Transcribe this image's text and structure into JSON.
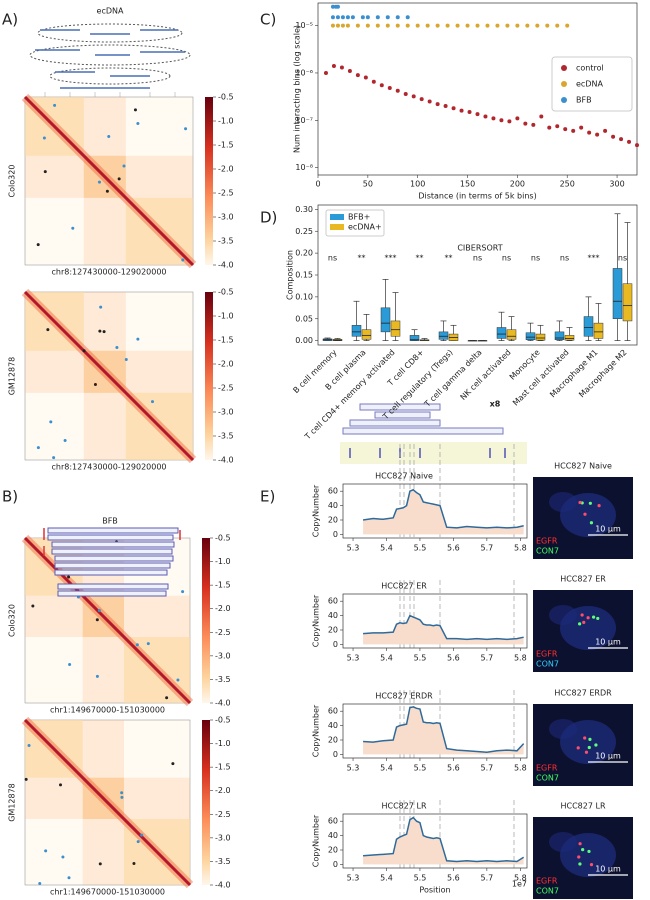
{
  "panel_labels": [
    "A)",
    "B)",
    "C)",
    "D)",
    "E)"
  ],
  "heatmap_panels": [
    {
      "title": "ecDNA",
      "maps": [
        {
          "sample": "Colo320",
          "region": "chr8:127430000-129020000"
        },
        {
          "sample": "GM12878",
          "region": "chr8:127430000-129020000"
        }
      ]
    },
    {
      "title": "BFB",
      "maps": [
        {
          "sample": "Colo320",
          "region": "chr1:149670000-151030000"
        },
        {
          "sample": "GM12878",
          "region": "chr1:149670000-151030000"
        }
      ]
    }
  ],
  "colorbar": {
    "clim": [
      -4,
      -0.5
    ],
    "ticks": [
      -0.5,
      {
        "value": -1,
        "label": "-1.0"
      },
      -1.5,
      {
        "value": -2,
        "label": "-2.0"
      },
      -2.5,
      {
        "value": -3,
        "label": "-3.0"
      },
      -3.5,
      {
        "value": -4,
        "label": "-4.0"
      }
    ]
  },
  "chart_data": [
    {
      "type": "scatter",
      "xlabel": "Distance (in terms of 5k bins)",
      "ylabel": "Num interacting bins (log scale)",
      "log_y": true,
      "legend": "center right",
      "xlim": [
        0,
        320
      ],
      "xticks": [
        0,
        50,
        100,
        150,
        200,
        250,
        300
      ],
      "ylim": [
        7e-09,
        3e-05
      ],
      "yticks": [
        {
          "value": 1e-08,
          "label": "10⁻⁸"
        },
        {
          "value": 1e-07,
          "label": "10⁻⁷"
        },
        {
          "value": 1e-06,
          "label": "10⁻⁶"
        },
        {
          "value": 1e-05,
          "label": "10⁻⁵"
        }
      ],
      "series": [
        {
          "name": "control",
          "color": "#b2262e",
          "x": [
            8,
            16,
            24,
            32,
            40,
            48,
            56,
            64,
            72,
            80,
            88,
            96,
            104,
            112,
            120,
            128,
            136,
            144,
            152,
            160,
            168,
            176,
            184,
            192,
            200,
            208,
            216,
            224,
            232,
            240,
            248,
            256,
            264,
            272,
            280,
            288,
            296,
            304,
            312,
            320
          ],
          "values": [
            1e-06,
            1.4e-06,
            1.3e-06,
            1.1e-06,
            9e-07,
            8e-07,
            6.5e-07,
            5.5e-07,
            4.8e-07,
            4.2e-07,
            3.6e-07,
            3.2e-07,
            2.8e-07,
            2.5e-07,
            2.2e-07,
            2e-07,
            1.8e-07,
            1.6e-07,
            1.5e-07,
            1.35e-07,
            1.2e-07,
            1.1e-07,
            1e-07,
            9.5e-08,
            1.1e-07,
            8.5e-08,
            8e-08,
            1.2e-07,
            7e-08,
            7.5e-08,
            6.5e-08,
            6e-08,
            7e-08,
            5.5e-08,
            5e-08,
            6e-08,
            4.5e-08,
            4e-08,
            3.5e-08,
            3e-08
          ]
        },
        {
          "name": "ecDNA",
          "color": "#d9a62e",
          "x": [
            15,
            20,
            25,
            30,
            40,
            50,
            60,
            70,
            80,
            90,
            100,
            110,
            120,
            130,
            140,
            150,
            160,
            170,
            180,
            190,
            200,
            210,
            220,
            230,
            240,
            250
          ],
          "values": [
            1e-05,
            1e-05,
            1e-05,
            1e-05,
            1e-05,
            1e-05,
            1e-05,
            1e-05,
            1e-05,
            1e-05,
            1e-05,
            1e-05,
            1e-05,
            1e-05,
            1e-05,
            1e-05,
            1e-05,
            1e-05,
            1e-05,
            1e-05,
            1e-05,
            1e-05,
            1e-05,
            1e-05,
            1e-05,
            1e-05
          ]
        },
        {
          "name": "BFB",
          "color": "#3a8fd0",
          "x": [
            15,
            18,
            20,
            15,
            20,
            25,
            30,
            35,
            45,
            50,
            60,
            70,
            80,
            90
          ],
          "values": [
            2.5e-05,
            2.5e-05,
            2.5e-05,
            1.5e-05,
            1.5e-05,
            1.5e-05,
            1.5e-05,
            1.5e-05,
            1.5e-05,
            1.5e-05,
            1.5e-05,
            1.5e-05,
            1.5e-05,
            1.5e-05
          ]
        }
      ]
    },
    {
      "type": "box",
      "title": "CIBERSORT",
      "ylabel": "Composition",
      "legend": "upper left",
      "categories": [
        "B cell memory",
        "B cell plasma",
        "T cell CD4+ memory activated",
        "T cell CD8+",
        "T cell regulatory (Tregs)",
        "T cell gamma delta",
        "NK cell activated",
        "Monocyte",
        "Mast cell activated",
        "Macrophage M1",
        "Macrophage M2"
      ],
      "significance": [
        "ns",
        "**",
        "***",
        "**",
        "**",
        "ns",
        "ns",
        "ns",
        "ns",
        "***",
        "ns"
      ],
      "ylim": [
        -0.01,
        0.31
      ],
      "yticks": [
        {
          "value": 0,
          "label": "0.00"
        },
        {
          "value": 0.05,
          "label": "0.05"
        },
        {
          "value": 0.1,
          "label": "0.10"
        },
        {
          "value": 0.15,
          "label": "0.15"
        },
        {
          "value": 0.2,
          "label": "0.20"
        },
        {
          "value": 0.25,
          "label": "0.25"
        },
        {
          "value": 0.3,
          "label": "0.30"
        }
      ],
      "series": [
        {
          "name": "BFB+",
          "color": "#2b9bd8",
          "whislo": [
            0,
            0,
            0,
            0,
            0,
            0,
            0,
            0,
            0,
            0,
            0
          ],
          "q1": [
            0,
            0.01,
            0.02,
            0,
            0.003,
            0,
            0.005,
            0.002,
            0.002,
            0.01,
            0.05
          ],
          "median": [
            0.002,
            0.02,
            0.04,
            0.002,
            0.01,
            0,
            0.015,
            0.008,
            0.006,
            0.03,
            0.09
          ],
          "q3": [
            0.004,
            0.035,
            0.075,
            0.012,
            0.02,
            0,
            0.03,
            0.018,
            0.02,
            0.055,
            0.165
          ],
          "whishi": [
            0.006,
            0.09,
            0.14,
            0.025,
            0.045,
            0,
            0.065,
            0.04,
            0.045,
            0.1,
            0.29
          ]
        },
        {
          "name": "ecDNA+",
          "color": "#e8b923",
          "whislo": [
            0,
            0,
            0,
            0,
            0,
            0,
            0,
            0,
            0,
            0,
            0
          ],
          "q1": [
            0,
            0.003,
            0.01,
            0,
            0,
            0,
            0.003,
            0.001,
            0.001,
            0.005,
            0.045
          ],
          "median": [
            0.001,
            0.012,
            0.025,
            0,
            0.007,
            0,
            0.01,
            0.006,
            0.005,
            0.02,
            0.08
          ],
          "q3": [
            0.003,
            0.025,
            0.045,
            0.002,
            0.015,
            0,
            0.025,
            0.015,
            0.012,
            0.04,
            0.13
          ],
          "whishi": [
            0.005,
            0.06,
            0.11,
            0.005,
            0.035,
            0,
            0.055,
            0.035,
            0.03,
            0.085,
            0.27
          ]
        }
      ]
    },
    {
      "type": "line",
      "title": "HCC827 Naive",
      "ylabel": "CopyNumber",
      "xlim": [
        5.27,
        5.82
      ],
      "xticks": [
        5.3,
        5.4,
        5.5,
        5.6,
        5.7,
        5.8
      ],
      "ylim": [
        -5,
        70
      ],
      "yticks": [
        0,
        20,
        40,
        60
      ],
      "series": [
        {
          "color": "#2f6a9a",
          "x": [
            5.33,
            5.36,
            5.39,
            5.42,
            5.43,
            5.44,
            5.45,
            5.46,
            5.47,
            5.48,
            5.49,
            5.5,
            5.51,
            5.52,
            5.53,
            5.54,
            5.55,
            5.56,
            5.58,
            5.61,
            5.64,
            5.67,
            5.7,
            5.73,
            5.76,
            5.79,
            5.81
          ],
          "values": [
            20,
            22,
            21,
            23,
            35,
            36,
            37,
            40,
            60,
            62,
            58,
            55,
            45,
            44,
            43,
            42,
            41,
            40,
            10,
            9,
            11,
            10,
            9,
            10,
            9,
            10,
            12
          ]
        }
      ]
    },
    {
      "type": "line",
      "title": "HCC827 ER",
      "ylabel": "CopyNumber",
      "xlim": [
        5.27,
        5.82
      ],
      "xticks": [
        5.3,
        5.4,
        5.5,
        5.6,
        5.7,
        5.8
      ],
      "ylim": [
        -5,
        70
      ],
      "yticks": [
        0,
        20,
        40,
        60
      ],
      "series": [
        {
          "color": "#2f6a9a",
          "x": [
            5.33,
            5.36,
            5.39,
            5.42,
            5.43,
            5.44,
            5.45,
            5.46,
            5.47,
            5.48,
            5.49,
            5.5,
            5.51,
            5.52,
            5.53,
            5.54,
            5.55,
            5.56,
            5.58,
            5.61,
            5.64,
            5.67,
            5.7,
            5.73,
            5.76,
            5.79,
            5.81
          ],
          "values": [
            15,
            16,
            16,
            17,
            28,
            30,
            29,
            30,
            40,
            38,
            36,
            34,
            28,
            27,
            27,
            26,
            27,
            26,
            8,
            8,
            7,
            8,
            7,
            8,
            7,
            8,
            10
          ]
        }
      ]
    },
    {
      "type": "line",
      "title": "HCC827 ERDR",
      "ylabel": "CopyNumber",
      "xlim": [
        5.27,
        5.82
      ],
      "xticks": [
        5.3,
        5.4,
        5.5,
        5.6,
        5.7,
        5.8
      ],
      "ylim": [
        -5,
        70
      ],
      "yticks": [
        0,
        20,
        40,
        60
      ],
      "series": [
        {
          "color": "#2f6a9a",
          "x": [
            5.33,
            5.36,
            5.39,
            5.42,
            5.43,
            5.44,
            5.45,
            5.46,
            5.47,
            5.48,
            5.49,
            5.5,
            5.51,
            5.52,
            5.53,
            5.54,
            5.55,
            5.56,
            5.58,
            5.61,
            5.64,
            5.67,
            5.7,
            5.73,
            5.76,
            5.79,
            5.81
          ],
          "values": [
            18,
            17,
            19,
            20,
            38,
            40,
            41,
            42,
            65,
            66,
            64,
            63,
            45,
            44,
            44,
            43,
            44,
            43,
            8,
            6,
            5,
            4,
            3,
            5,
            6,
            5,
            15
          ]
        }
      ]
    },
    {
      "type": "line",
      "title": "HCC827 LR",
      "ylabel": "CopyNumber",
      "xlabel": "Position",
      "offset_label": "1e7",
      "xlim": [
        5.27,
        5.82
      ],
      "xticks": [
        5.3,
        5.4,
        5.5,
        5.6,
        5.7,
        5.8
      ],
      "ylim": [
        -5,
        70
      ],
      "yticks": [
        0,
        20,
        40,
        60
      ],
      "series": [
        {
          "color": "#2f6a9a",
          "x": [
            5.33,
            5.36,
            5.39,
            5.42,
            5.43,
            5.44,
            5.45,
            5.46,
            5.47,
            5.48,
            5.49,
            5.5,
            5.51,
            5.52,
            5.53,
            5.54,
            5.55,
            5.56,
            5.58,
            5.61,
            5.64,
            5.67,
            5.7,
            5.73,
            5.76,
            5.79,
            5.81
          ],
          "values": [
            12,
            13,
            14,
            15,
            35,
            38,
            40,
            42,
            62,
            65,
            60,
            58,
            40,
            38,
            37,
            36,
            37,
            36,
            5,
            4,
            5,
            4,
            5,
            4,
            5,
            4,
            10
          ]
        }
      ]
    }
  ],
  "diagram_label": "x8",
  "fish_images": [
    {
      "title": "HCC827 Naive",
      "labels": [
        "EGFR",
        "CON7"
      ],
      "scale": "10 μm"
    },
    {
      "title": "HCC827 ER",
      "labels": [
        "EGFR",
        "CON7"
      ],
      "scale": "10 μm"
    },
    {
      "title": "HCC827 ERDR",
      "labels": [
        "EGFR",
        "CON7"
      ],
      "scale": "10 μm"
    },
    {
      "title": "HCC827 LR",
      "labels": [
        "EGFR",
        "CON7"
      ],
      "scale": "10 μm"
    }
  ]
}
